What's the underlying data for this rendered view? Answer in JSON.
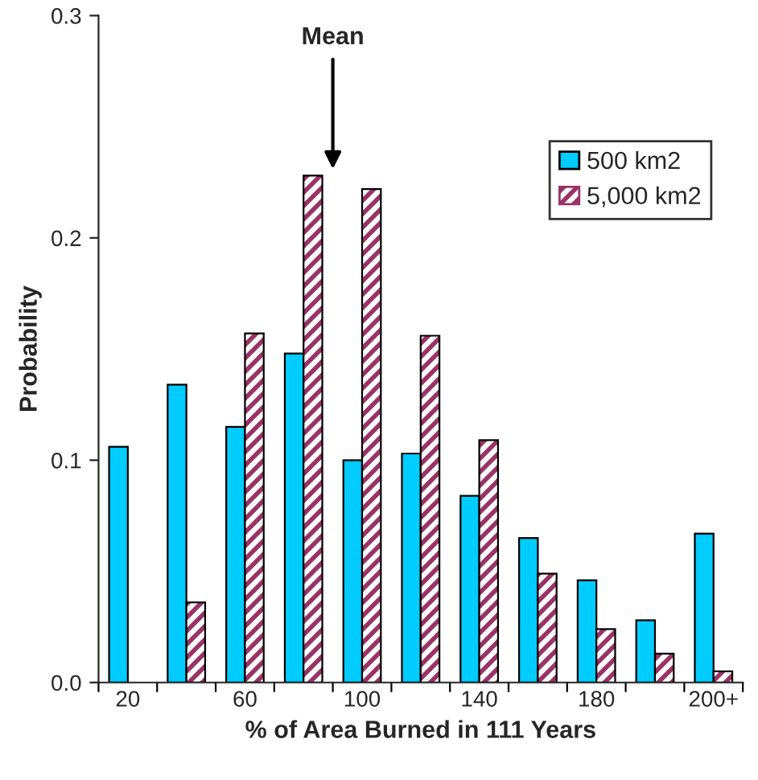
{
  "chart_data": {
    "type": "bar",
    "xlabel": "% of Area Burned in 111 Years",
    "ylabel": "Probability",
    "categories": [
      "20",
      null,
      "60",
      null,
      "100",
      null,
      "140",
      null,
      "180",
      null,
      "200+"
    ],
    "series": [
      {
        "name": "500 km2",
        "color": "#00ccff",
        "values": [
          0.106,
          0.134,
          0.115,
          0.148,
          0.1,
          0.103,
          0.084,
          0.065,
          0.046,
          0.028,
          0.067
        ]
      },
      {
        "name": "5,000 km2",
        "color": "#993366",
        "values": [
          null,
          0.036,
          0.157,
          0.228,
          0.222,
          0.156,
          0.109,
          0.049,
          0.024,
          0.013,
          0.005
        ]
      }
    ],
    "ylim": [
      0,
      0.3
    ],
    "yticks": [
      {
        "value": 0,
        "label": "0.0"
      },
      {
        "value": 0.1,
        "label": "0.1"
      },
      {
        "value": 0.2,
        "label": "0.2"
      },
      {
        "value": 0.3,
        "label": "0.3"
      }
    ],
    "annotations": [
      "Mean"
    ],
    "legend": "top right",
    "grid": false
  }
}
